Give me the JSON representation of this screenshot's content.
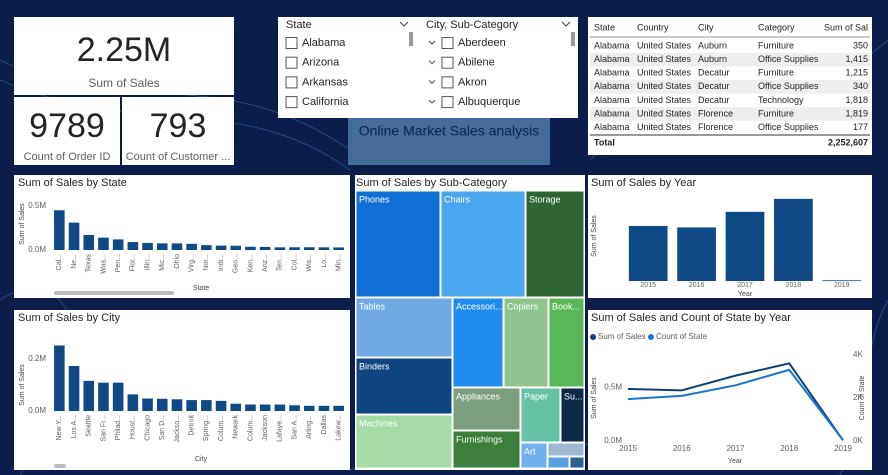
{
  "cards": [
    {
      "value": "2.25M",
      "label": "Sum of Sales"
    },
    {
      "value": "9789",
      "label": "Count of Order ID"
    },
    {
      "value": "793",
      "label": "Count of Customer ..."
    }
  ],
  "slicers": [
    {
      "title": "State",
      "items": [
        "Alabama",
        "Arizona",
        "Arkansas",
        "California"
      ]
    },
    {
      "title": "City, Sub-Category",
      "items": [
        "Aberdeen",
        "Abilene",
        "Akron",
        "Albuquerque"
      ]
    }
  ],
  "banner": "Online Market Sales analysis",
  "table": {
    "columns": [
      "State",
      "Country",
      "City",
      "Category",
      "Sum of Sal"
    ],
    "rows": [
      [
        "Alabama",
        "United States",
        "Auburn",
        "Furniture",
        "350"
      ],
      [
        "Alabama",
        "United States",
        "Auburn",
        "Office Supplies",
        "1,415"
      ],
      [
        "Alabama",
        "United States",
        "Decatur",
        "Furniture",
        "1,215"
      ],
      [
        "Alabama",
        "United States",
        "Decatur",
        "Office Supplies",
        "340"
      ],
      [
        "Alabama",
        "United States",
        "Decatur",
        "Technology",
        "1,818"
      ],
      [
        "Alabama",
        "United States",
        "Florence",
        "Furniture",
        "1,819"
      ],
      [
        "Alabama",
        "United States",
        "Florence",
        "Office Supplies",
        "177"
      ]
    ],
    "total": [
      "Total",
      "2,252,607"
    ]
  },
  "chart_data": [
    {
      "type": "bar",
      "title": "Sum of Sales by State",
      "x_label": "State",
      "y_label": "Sum of Sales",
      "categories": [
        "Cal...",
        "Ne...",
        "Texas",
        "Was...",
        "Pen...",
        "Flor...",
        "Illin...",
        "Mic...",
        "Ohio",
        "Virg...",
        "Nor...",
        "Indi...",
        "Geo...",
        "Ken...",
        "Ariz...",
        "Ten...",
        "Col...",
        "Wis...",
        "Lo...",
        "Min..."
      ],
      "values": [
        450000,
        310000,
        170000,
        140000,
        120000,
        90000,
        80000,
        75000,
        75000,
        70000,
        55000,
        50000,
        48000,
        37000,
        35000,
        30000,
        31000,
        31000,
        30000,
        29000
      ],
      "color": "#0f4a86",
      "ylim": [
        0,
        600000
      ],
      "yticks": [
        {
          "value": 0,
          "label": "0.0M"
        },
        {
          "value": 500000,
          "label": "0.5M"
        }
      ]
    },
    {
      "type": "bar",
      "title": "Sum of Sales by City",
      "x_label": "City",
      "y_label": "Sum of Sales",
      "categories": [
        "New Y...",
        "Los A...",
        "Seattle",
        "San Fr...",
        "Philad...",
        "Houst...",
        "Chicago",
        "San D...",
        "Jackso...",
        "Detroit",
        "Spring...",
        "Colum...",
        "Newark",
        "Colum...",
        "Jackson",
        "Lafaye...",
        "San A...",
        "Arling...",
        "Dallas",
        "Lakew..."
      ],
      "values": [
        252000,
        173000,
        116000,
        109000,
        109000,
        64000,
        48000,
        47000,
        45000,
        42000,
        42000,
        39000,
        28000,
        25000,
        25000,
        25000,
        22000,
        20000,
        20000,
        20000
      ],
      "color": "#0f4a86",
      "ylim": [
        0,
        300000
      ],
      "yticks": [
        {
          "value": 0,
          "label": "0.0M"
        },
        {
          "value": 200000,
          "label": "0.2M"
        }
      ]
    },
    {
      "type": "treemap",
      "title": "Sum of Sales by Sub-Category",
      "categories": [
        "Phones",
        "Chairs",
        "Storage",
        "Tables",
        "Binders",
        "Machines",
        "Accessori...",
        "Copiers",
        "Book...",
        "Appliances",
        "Furnishings",
        "Paper",
        "Su...",
        "Art",
        null,
        null,
        null
      ],
      "values": [
        330000,
        328000,
        224000,
        207000,
        203000,
        189000,
        167000,
        150000,
        115000,
        108000,
        92000,
        78000,
        47000,
        27000,
        16000,
        12000,
        3000
      ],
      "colors": [
        "#1170d5",
        "#4aa6ee",
        "#2f6532",
        "#6ea9e4",
        "#0d4680",
        "#a6dca6",
        "#1f8cf0",
        "#8fc48f",
        "#58b858",
        "#7d9e7e",
        "#3c7f3c",
        "#66c2a5",
        "#0c2846",
        "#70b0ee",
        "#9fb8d0",
        "#5aa0e0",
        "#2d5f8f"
      ]
    },
    {
      "type": "bar",
      "title": "Sum of Sales by Year",
      "x_label": "Year",
      "y_label": "Sum of Sales",
      "categories": [
        "2015",
        "2016",
        "2017",
        "2018",
        "2019"
      ],
      "values": [
        484000,
        471000,
        608000,
        722000,
        6000
      ],
      "color": "#0f4a86",
      "ylim": [
        0,
        800000
      ]
    },
    {
      "type": "line",
      "title": "Sum of Sales and Count of State by Year",
      "x_label": "Year",
      "y_label": "Sum of Sales",
      "y2_label": "Count of State",
      "categories": [
        "2015",
        "2016",
        "2017",
        "2018",
        "2019"
      ],
      "series": [
        {
          "name": "Sum of Sales",
          "color": "#12407a",
          "values": [
            484000,
            471000,
            608000,
            722000,
            6000
          ]
        },
        {
          "name": "Count of State",
          "color": "#1a74d2",
          "values": [
            1950,
            2100,
            2590,
            3310,
            40
          ],
          "axis": "y2"
        }
      ],
      "ylim": [
        0,
        800000
      ],
      "yticks": [
        {
          "value": 0,
          "label": "0.0M"
        },
        {
          "value": 500000,
          "label": "0.5M"
        }
      ],
      "y2lim": [
        0,
        4000
      ],
      "y2ticks": [
        {
          "value": 0,
          "label": "0K"
        },
        {
          "value": 2000,
          "label": "2K"
        },
        {
          "value": 4000,
          "label": "4K"
        }
      ]
    }
  ]
}
